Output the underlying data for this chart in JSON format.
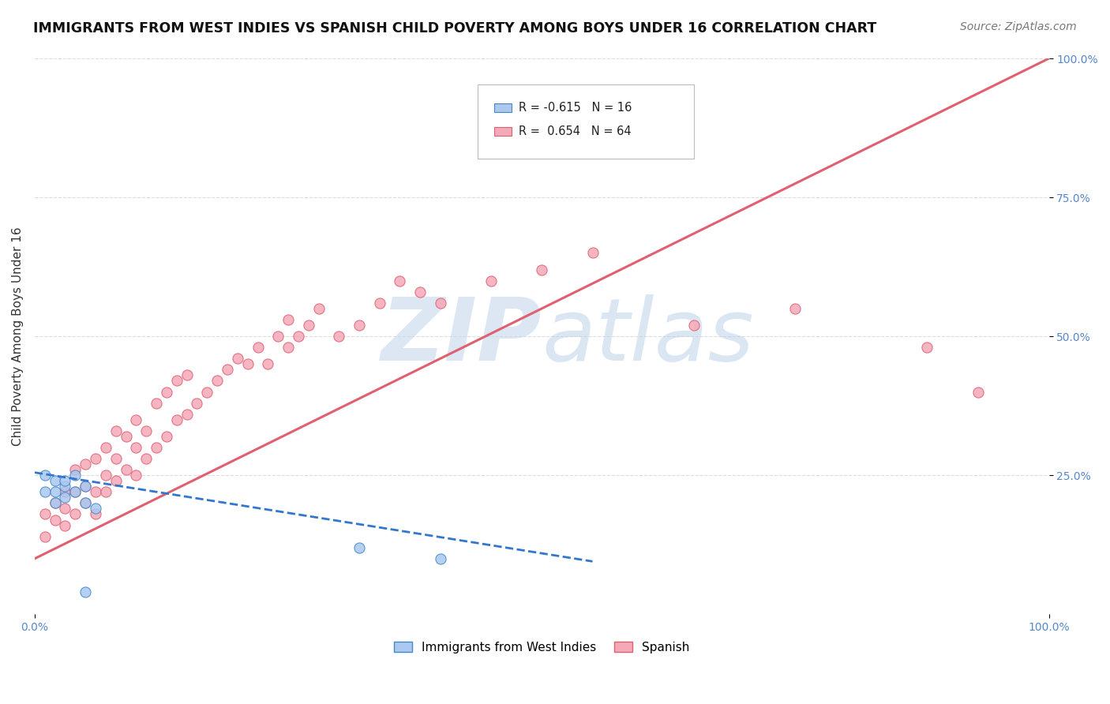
{
  "title": "IMMIGRANTS FROM WEST INDIES VS SPANISH CHILD POVERTY AMONG BOYS UNDER 16 CORRELATION CHART",
  "source": "Source: ZipAtlas.com",
  "ylabel": "Child Poverty Among Boys Under 16",
  "xlim": [
    0,
    1.0
  ],
  "ylim": [
    0,
    1.0
  ],
  "west_indies_R": -0.615,
  "west_indies_N": 16,
  "spanish_R": 0.654,
  "spanish_N": 64,
  "west_indies_color": "#aac8f0",
  "spanish_color": "#f5a8b8",
  "west_indies_edge_color": "#4488cc",
  "spanish_edge_color": "#e06070",
  "west_indies_line_color": "#3377cc",
  "spanish_line_color": "#e06070",
  "watermark_color": "#ccddef",
  "background_color": "#ffffff",
  "grid_color": "#dddddd",
  "west_indies_scatter_x": [
    0.01,
    0.01,
    0.02,
    0.02,
    0.02,
    0.03,
    0.03,
    0.03,
    0.04,
    0.04,
    0.05,
    0.05,
    0.06,
    0.32,
    0.4,
    0.05
  ],
  "west_indies_scatter_y": [
    0.22,
    0.25,
    0.24,
    0.22,
    0.2,
    0.23,
    0.21,
    0.24,
    0.22,
    0.25,
    0.23,
    0.2,
    0.19,
    0.12,
    0.1,
    0.04
  ],
  "spanish_scatter_x": [
    0.01,
    0.01,
    0.02,
    0.02,
    0.03,
    0.03,
    0.03,
    0.04,
    0.04,
    0.04,
    0.05,
    0.05,
    0.05,
    0.06,
    0.06,
    0.06,
    0.07,
    0.07,
    0.07,
    0.08,
    0.08,
    0.08,
    0.09,
    0.09,
    0.1,
    0.1,
    0.1,
    0.11,
    0.11,
    0.12,
    0.12,
    0.13,
    0.13,
    0.14,
    0.14,
    0.15,
    0.15,
    0.16,
    0.17,
    0.18,
    0.19,
    0.2,
    0.21,
    0.22,
    0.23,
    0.24,
    0.25,
    0.25,
    0.26,
    0.27,
    0.28,
    0.3,
    0.32,
    0.34,
    0.36,
    0.38,
    0.4,
    0.45,
    0.5,
    0.55,
    0.65,
    0.75,
    0.88,
    0.93
  ],
  "spanish_scatter_y": [
    0.14,
    0.18,
    0.17,
    0.2,
    0.16,
    0.19,
    0.22,
    0.18,
    0.22,
    0.26,
    0.2,
    0.23,
    0.27,
    0.18,
    0.22,
    0.28,
    0.22,
    0.25,
    0.3,
    0.24,
    0.28,
    0.33,
    0.26,
    0.32,
    0.25,
    0.3,
    0.35,
    0.28,
    0.33,
    0.3,
    0.38,
    0.32,
    0.4,
    0.35,
    0.42,
    0.36,
    0.43,
    0.38,
    0.4,
    0.42,
    0.44,
    0.46,
    0.45,
    0.48,
    0.45,
    0.5,
    0.48,
    0.53,
    0.5,
    0.52,
    0.55,
    0.5,
    0.52,
    0.56,
    0.6,
    0.58,
    0.56,
    0.6,
    0.62,
    0.65,
    0.52,
    0.55,
    0.48,
    0.4
  ],
  "spanish_line_x": [
    0.0,
    1.0
  ],
  "spanish_line_y": [
    0.1,
    1.0
  ],
  "west_indies_line_x": [
    0.0,
    0.55
  ],
  "west_indies_line_y": [
    0.255,
    0.095
  ]
}
